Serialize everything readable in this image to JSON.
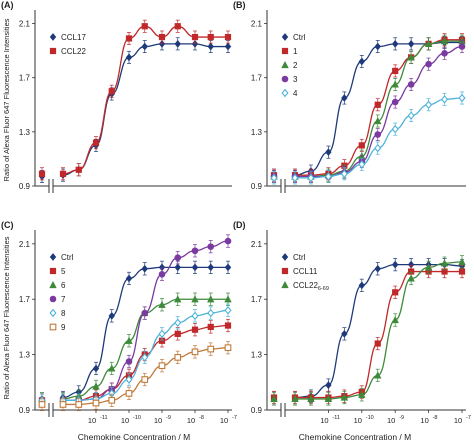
{
  "chart_data": [
    {
      "panel": "(A)",
      "type": "line",
      "x_is_log": true,
      "x_has_zero_break": true,
      "ylim": [
        0.9,
        2.2
      ],
      "yticks": [
        0.9,
        1.3,
        1.7,
        2.1
      ],
      "xticks": [],
      "legend_position": "top-left",
      "series": [
        {
          "name": "CCL17",
          "marker": "diamond",
          "color": "#1f3a7a",
          "filled": true,
          "x": [
            0,
            1e-12,
            3e-12,
            1e-11,
            3e-11,
            1e-10,
            3e-10,
            1e-09,
            3e-09,
            1e-08,
            3e-08,
            1e-07
          ],
          "y": [
            0.97,
            0.98,
            1.02,
            1.2,
            1.58,
            1.85,
            1.93,
            1.95,
            1.95,
            1.95,
            1.93,
            1.93
          ]
        },
        {
          "name": "CCL22",
          "marker": "square",
          "color": "#c0282a",
          "filled": true,
          "x": [
            0,
            1e-12,
            3e-12,
            1e-11,
            3e-11,
            1e-10,
            3e-10,
            1e-09,
            3e-09,
            1e-08,
            3e-08,
            1e-07
          ],
          "y": [
            0.99,
            0.99,
            1.02,
            1.22,
            1.6,
            1.99,
            2.08,
            2.0,
            2.08,
            2.0,
            2.0,
            2.0
          ]
        }
      ]
    },
    {
      "panel": "(B)",
      "type": "line",
      "x_is_log": true,
      "x_has_zero_break": true,
      "ylim": [
        0.9,
        2.2
      ],
      "yticks": [
        0.9,
        1.3,
        1.7,
        2.1
      ],
      "xticks": [],
      "legend_position": "top-left",
      "series": [
        {
          "name": "Ctrl",
          "marker": "diamond",
          "color": "#1f3a7a",
          "filled": true,
          "x": [
            0,
            1e-12,
            3e-12,
            1e-11,
            3e-11,
            1e-10,
            3e-10,
            1e-09,
            3e-09,
            1e-08,
            3e-08,
            1e-07
          ],
          "y": [
            0.98,
            0.98,
            1.01,
            1.15,
            1.55,
            1.82,
            1.93,
            1.95,
            1.95,
            1.95,
            1.96,
            1.96
          ]
        },
        {
          "name": "1",
          "marker": "square",
          "color": "#c0282a",
          "filled": true,
          "x": [
            0,
            1e-12,
            3e-12,
            1e-11,
            3e-11,
            1e-10,
            3e-10,
            1e-09,
            3e-09,
            1e-08,
            3e-08,
            1e-07
          ],
          "y": [
            0.98,
            0.98,
            0.98,
            0.99,
            1.05,
            1.2,
            1.5,
            1.75,
            1.85,
            1.95,
            1.98,
            1.98
          ]
        },
        {
          "name": "2",
          "marker": "triangle",
          "color": "#3d8a3a",
          "filled": true,
          "x": [
            0,
            1e-12,
            3e-12,
            1e-11,
            3e-11,
            1e-10,
            3e-10,
            1e-09,
            3e-09,
            1e-08,
            3e-08,
            1e-07
          ],
          "y": [
            0.97,
            0.97,
            0.97,
            0.98,
            1.01,
            1.12,
            1.38,
            1.65,
            1.85,
            1.95,
            1.97,
            1.97
          ]
        },
        {
          "name": "3",
          "marker": "circle",
          "color": "#7a3aa0",
          "filled": true,
          "x": [
            0,
            1e-12,
            3e-12,
            1e-11,
            3e-11,
            1e-10,
            3e-10,
            1e-09,
            3e-09,
            1e-08,
            3e-08,
            1e-07
          ],
          "y": [
            0.97,
            0.97,
            0.97,
            0.97,
            1.0,
            1.08,
            1.28,
            1.52,
            1.65,
            1.8,
            1.88,
            1.93
          ]
        },
        {
          "name": "4",
          "marker": "diamond",
          "color": "#4fb3d9",
          "filled": false,
          "x": [
            0,
            1e-12,
            3e-12,
            1e-11,
            3e-11,
            1e-10,
            3e-10,
            1e-09,
            3e-09,
            1e-08,
            3e-08,
            1e-07
          ],
          "y": [
            0.96,
            0.96,
            0.96,
            0.97,
            0.99,
            1.06,
            1.18,
            1.32,
            1.42,
            1.5,
            1.54,
            1.55
          ]
        }
      ]
    },
    {
      "panel": "(C)",
      "type": "line",
      "x_is_log": true,
      "x_has_zero_break": true,
      "ylim": [
        0.9,
        2.2
      ],
      "yticks": [
        0.9,
        1.3,
        1.7,
        2.1
      ],
      "xticks": [
        1e-11,
        1e-10,
        1e-09,
        1e-08,
        1e-07
      ],
      "legend_position": "top-left",
      "series": [
        {
          "name": "Ctrl",
          "marker": "diamond",
          "color": "#1f3a7a",
          "filled": true,
          "x": [
            0,
            1e-12,
            3e-12,
            1e-11,
            3e-11,
            1e-10,
            3e-10,
            1e-09,
            3e-09,
            1e-08,
            3e-08,
            1e-07
          ],
          "y": [
            0.98,
            0.99,
            1.03,
            1.2,
            1.58,
            1.85,
            1.92,
            1.93,
            1.93,
            1.93,
            1.93,
            1.93
          ]
        },
        {
          "name": "5",
          "marker": "square",
          "color": "#c0282a",
          "filled": true,
          "x": [
            0,
            1e-12,
            3e-12,
            1e-11,
            3e-11,
            1e-10,
            3e-10,
            1e-09,
            3e-09,
            1e-08,
            3e-08,
            1e-07
          ],
          "y": [
            0.97,
            0.97,
            0.97,
            1.0,
            1.05,
            1.15,
            1.3,
            1.4,
            1.45,
            1.48,
            1.5,
            1.51
          ]
        },
        {
          "name": "6",
          "marker": "triangle",
          "color": "#3d8a3a",
          "filled": true,
          "x": [
            0,
            1e-12,
            3e-12,
            1e-11,
            3e-11,
            1e-10,
            3e-10,
            1e-09,
            3e-09,
            1e-08,
            3e-08,
            1e-07
          ],
          "y": [
            0.98,
            0.98,
            1.0,
            1.07,
            1.2,
            1.4,
            1.6,
            1.66,
            1.7,
            1.7,
            1.7,
            1.7
          ]
        },
        {
          "name": "7",
          "marker": "circle",
          "color": "#7a3aa0",
          "filled": true,
          "x": [
            0,
            1e-12,
            3e-12,
            1e-11,
            3e-11,
            1e-10,
            3e-10,
            1e-09,
            3e-09,
            1e-08,
            3e-08,
            1e-07
          ],
          "y": [
            0.97,
            0.97,
            0.97,
            0.98,
            1.05,
            1.25,
            1.6,
            1.88,
            2.0,
            2.05,
            2.08,
            2.12
          ]
        },
        {
          "name": "8",
          "marker": "diamond",
          "color": "#4fb3d9",
          "filled": false,
          "x": [
            0,
            1e-12,
            3e-12,
            1e-11,
            3e-11,
            1e-10,
            3e-10,
            1e-09,
            3e-09,
            1e-08,
            3e-08,
            1e-07
          ],
          "y": [
            0.97,
            0.97,
            0.97,
            0.98,
            1.02,
            1.12,
            1.28,
            1.45,
            1.53,
            1.58,
            1.6,
            1.62
          ]
        },
        {
          "name": "9",
          "marker": "square",
          "color": "#c07a3a",
          "filled": false,
          "x": [
            0,
            1e-12,
            3e-12,
            1e-11,
            3e-11,
            1e-10,
            3e-10,
            1e-09,
            3e-09,
            1e-08,
            3e-08,
            1e-07
          ],
          "y": [
            0.94,
            0.94,
            0.94,
            0.95,
            0.97,
            1.02,
            1.12,
            1.22,
            1.28,
            1.32,
            1.34,
            1.35
          ]
        }
      ]
    },
    {
      "panel": "(D)",
      "type": "line",
      "x_is_log": true,
      "x_has_zero_break": true,
      "ylim": [
        0.9,
        2.2
      ],
      "yticks": [
        0.9,
        1.3,
        1.7,
        2.1
      ],
      "xticks": [
        1e-11,
        1e-10,
        1e-09,
        1e-08,
        1e-07
      ],
      "legend_position": "top-left",
      "series": [
        {
          "name": "Ctrl",
          "marker": "diamond",
          "color": "#1f3a7a",
          "filled": true,
          "x": [
            0,
            1e-12,
            3e-12,
            1e-11,
            3e-11,
            1e-10,
            3e-10,
            1e-09,
            3e-09,
            1e-08,
            3e-08,
            1e-07
          ],
          "y": [
            0.99,
            0.99,
            1.0,
            1.08,
            1.45,
            1.8,
            1.92,
            1.95,
            1.95,
            1.95,
            1.95,
            1.94
          ]
        },
        {
          "name": "CCL11",
          "marker": "square",
          "color": "#c0282a",
          "filled": true,
          "x": [
            0,
            1e-12,
            3e-12,
            1e-11,
            3e-11,
            1e-10,
            3e-10,
            1e-09,
            3e-09,
            1e-08,
            3e-08,
            1e-07
          ],
          "y": [
            0.99,
            0.99,
            0.99,
            0.99,
            1.0,
            1.03,
            1.38,
            1.75,
            1.9,
            1.9,
            1.9,
            1.9
          ]
        },
        {
          "name": "CCL22",
          "name_subscript": "6-69",
          "marker": "triangle",
          "color": "#3d8a3a",
          "filled": true,
          "x": [
            0,
            1e-12,
            3e-12,
            1e-11,
            3e-11,
            1e-10,
            3e-10,
            1e-09,
            3e-09,
            1e-08,
            3e-08,
            1e-07
          ],
          "y": [
            0.98,
            0.98,
            0.98,
            0.98,
            0.99,
            1.01,
            1.15,
            1.55,
            1.85,
            1.93,
            1.96,
            1.97
          ]
        }
      ]
    }
  ],
  "shared": {
    "ylabel": "Ratio of Alexa Fluor 647 Fluorescence Intensities",
    "xlabel": "Chemokine Concentration / M",
    "tick_base": "10"
  }
}
